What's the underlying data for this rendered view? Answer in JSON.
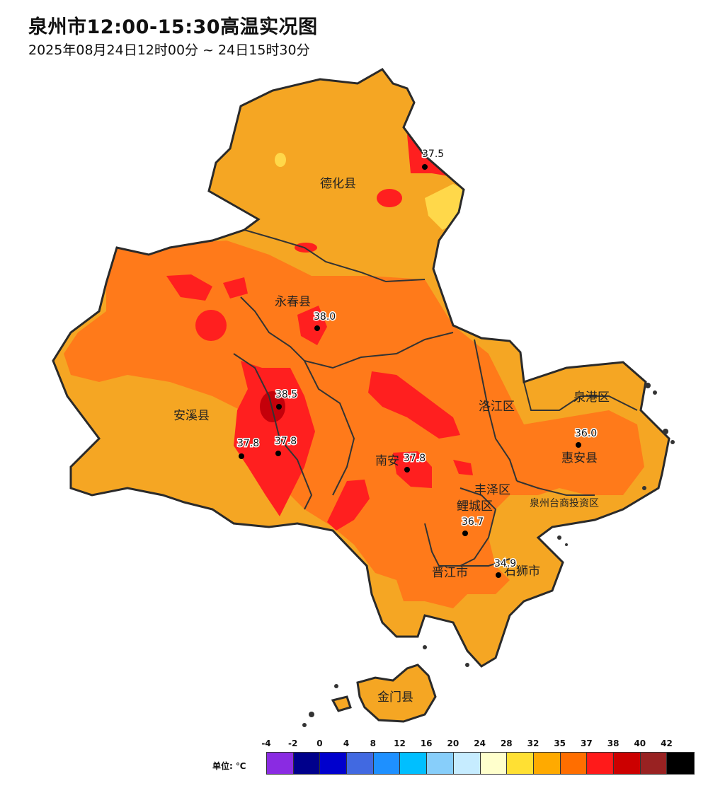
{
  "title": "泉州市12:00-15:30高温实况图",
  "subtitle": "2025年08月24日12时00分 ~ 24日15时30分",
  "regions": [
    {
      "id": "dehua",
      "name": "德化县"
    },
    {
      "id": "yongchun",
      "name": "永春县"
    },
    {
      "id": "anxi",
      "name": "安溪县"
    },
    {
      "id": "nanan",
      "name": "南安"
    },
    {
      "id": "luojiang",
      "name": "洛江区"
    },
    {
      "id": "quangang",
      "name": "泉港区"
    },
    {
      "id": "huian",
      "name": "惠安县"
    },
    {
      "id": "fengze",
      "name": "丰泽区"
    },
    {
      "id": "licheng",
      "name": "鲤城区"
    },
    {
      "id": "taishang",
      "name": "泉州台商投资区"
    },
    {
      "id": "jinjiang",
      "name": "晋江市"
    },
    {
      "id": "shishi",
      "name": "石狮市"
    },
    {
      "id": "jinmen",
      "name": "金门县"
    }
  ],
  "stations": [
    {
      "id": "s1",
      "value": "37.5"
    },
    {
      "id": "s2",
      "value": "38.0"
    },
    {
      "id": "s3",
      "value": "38.5"
    },
    {
      "id": "s4",
      "value": "37.8"
    },
    {
      "id": "s5",
      "value": "37.8"
    },
    {
      "id": "s6",
      "value": "37.8"
    },
    {
      "id": "s7",
      "value": "36.0"
    },
    {
      "id": "s8",
      "value": "36.7"
    },
    {
      "id": "s9",
      "value": "34.9"
    }
  ],
  "legend": {
    "unit_label": "单位: ℃",
    "ticks": [
      "-4",
      "-2",
      "0",
      "4",
      "8",
      "12",
      "16",
      "20",
      "24",
      "28",
      "32",
      "35",
      "37",
      "38",
      "40",
      "42"
    ],
    "colors": [
      "#8a2be2",
      "#00008b",
      "#0000cd",
      "#4169e1",
      "#1e90ff",
      "#00bfff",
      "#87cefa",
      "#c6ecff",
      "#ffffcc",
      "#ffe033",
      "#ffaa00",
      "#ff6e00",
      "#ff1a1a",
      "#cc0000",
      "#992222",
      "#000000"
    ]
  },
  "fill_colors": {
    "base": "#f5a623",
    "orange": "#ff7a1a",
    "red": "#ff1f1f",
    "darkred": "#c4000a",
    "yellow": "#ffd84a"
  }
}
